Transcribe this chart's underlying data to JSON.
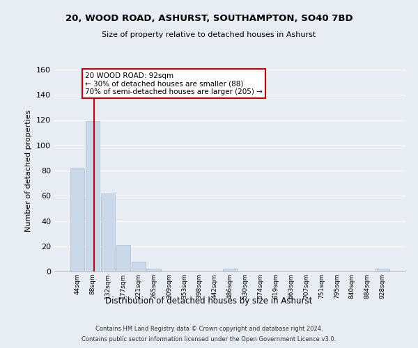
{
  "title1": "20, WOOD ROAD, ASHURST, SOUTHAMPTON, SO40 7BD",
  "title2": "Size of property relative to detached houses in Ashurst",
  "xlabel": "Distribution of detached houses by size in Ashurst",
  "ylabel": "Number of detached properties",
  "bin_labels": [
    "44sqm",
    "88sqm",
    "132sqm",
    "177sqm",
    "221sqm",
    "265sqm",
    "309sqm",
    "353sqm",
    "398sqm",
    "442sqm",
    "486sqm",
    "530sqm",
    "574sqm",
    "619sqm",
    "663sqm",
    "707sqm",
    "751sqm",
    "795sqm",
    "840sqm",
    "884sqm",
    "928sqm"
  ],
  "bar_values": [
    82,
    119,
    62,
    21,
    8,
    2,
    0,
    0,
    0,
    0,
    2,
    0,
    0,
    0,
    0,
    0,
    0,
    0,
    0,
    0,
    2
  ],
  "bar_color": "#c9d9ea",
  "bar_edgecolor": "#a8bdd0",
  "property_size": 92,
  "red_line_color": "#cc0000",
  "annotation_line1": "20 WOOD ROAD: 92sqm",
  "annotation_line2": "← 30% of detached houses are smaller (88)",
  "annotation_line3": "70% of semi-detached houses are larger (205) →",
  "annotation_box_color": "#cc0000",
  "ylim": [
    0,
    160
  ],
  "yticks": [
    0,
    20,
    40,
    60,
    80,
    100,
    120,
    140,
    160
  ],
  "bg_color": "#e8edf3",
  "grid_color": "#ffffff",
  "footer1": "Contains HM Land Registry data © Crown copyright and database right 2024.",
  "footer2": "Contains public sector information licensed under the Open Government Licence v3.0."
}
